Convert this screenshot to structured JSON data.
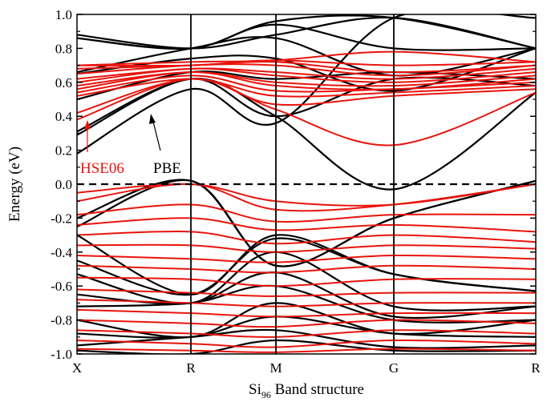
{
  "chart_data": {
    "type": "line",
    "title": "",
    "xlabel": "Si",
    "xlabel_subscript": "96",
    "xlabel_suffix": " Band structure",
    "ylabel": "Energy (eV)",
    "ylim": [
      -1.0,
      1.0
    ],
    "yticks": [
      "-1.0",
      "-0.8",
      "-0.6",
      "-0.4",
      "-0.2",
      "0.0",
      "0.2",
      "0.4",
      "0.6",
      "0.8",
      "1.0"
    ],
    "kpath": [
      "X",
      "R",
      "M",
      "G",
      "R"
    ],
    "fermi_level": 0.0,
    "colors": {
      "PBE": "#000000",
      "HSE06": "#e8140c"
    },
    "annotations": [
      {
        "text": "HSE06",
        "color": "#e8140c",
        "points_to": "HSE06"
      },
      {
        "text": "PBE",
        "color": "#000000",
        "points_to": "PBE"
      }
    ],
    "series": [
      {
        "name": "PBE",
        "bands": [
          [
            0.18,
            0.56,
            0.36,
            0.98,
            0.98
          ],
          [
            0.29,
            0.62,
            0.4,
            -0.03,
            0.54
          ],
          [
            0.31,
            0.62,
            0.4,
            0.62,
            0.58
          ],
          [
            0.5,
            0.66,
            0.62,
            0.66,
            0.62
          ],
          [
            0.65,
            0.74,
            0.74,
            0.55,
            0.8
          ],
          [
            0.66,
            0.8,
            0.86,
            0.64,
            0.8
          ],
          [
            0.86,
            0.8,
            0.96,
            0.98,
            0.8
          ],
          [
            0.88,
            0.8,
            0.88,
            0.98,
            0.8
          ],
          [
            0.86,
            0.8,
            0.94,
            0.8,
            0.8
          ],
          [
            -0.2,
            0.02,
            -0.48,
            -0.2,
            0.02
          ],
          [
            -0.25,
            0.02,
            -0.48,
            -0.2,
            0.02
          ],
          [
            -0.3,
            -0.65,
            -0.3,
            -0.53,
            -0.63
          ],
          [
            -0.45,
            -0.65,
            -0.32,
            -0.53,
            -0.63
          ],
          [
            -0.53,
            -0.7,
            -0.4,
            -0.72,
            -0.72
          ],
          [
            -0.65,
            -0.7,
            -0.52,
            -0.78,
            -0.72
          ],
          [
            -0.72,
            -0.7,
            -0.6,
            -0.8,
            -0.8
          ],
          [
            -0.8,
            -0.9,
            -0.7,
            -0.88,
            -0.8
          ],
          [
            -0.88,
            -0.9,
            -0.78,
            -0.88,
            -0.9
          ],
          [
            -0.95,
            -0.9,
            -0.86,
            -0.96,
            -0.95
          ],
          [
            -0.98,
            -1.0,
            -0.92,
            -0.98,
            -0.98
          ]
        ]
      },
      {
        "name": "HSE06",
        "bands": [
          [
            0.38,
            0.62,
            0.44,
            0.23,
            0.54
          ],
          [
            0.42,
            0.62,
            0.47,
            0.52,
            0.56
          ],
          [
            0.52,
            0.62,
            0.52,
            0.54,
            0.58
          ],
          [
            0.54,
            0.64,
            0.55,
            0.56,
            0.6
          ],
          [
            0.56,
            0.66,
            0.58,
            0.56,
            0.62
          ],
          [
            0.58,
            0.66,
            0.6,
            0.58,
            0.64
          ],
          [
            0.6,
            0.68,
            0.64,
            0.6,
            0.66
          ],
          [
            0.62,
            0.68,
            0.66,
            0.62,
            0.68
          ],
          [
            0.65,
            0.7,
            0.7,
            0.64,
            0.7
          ],
          [
            0.68,
            0.7,
            0.72,
            0.66,
            0.7
          ],
          [
            0.7,
            0.7,
            0.73,
            0.7,
            0.72
          ],
          [
            0.7,
            0.72,
            0.73,
            0.78,
            0.72
          ],
          [
            -0.05,
            0.0,
            -0.1,
            -0.12,
            0.0
          ],
          [
            -0.1,
            0.0,
            -0.15,
            -0.12,
            0.0
          ],
          [
            -0.18,
            -0.12,
            -0.22,
            -0.18,
            -0.18
          ],
          [
            -0.24,
            -0.2,
            -0.27,
            -0.24,
            -0.28
          ],
          [
            -0.3,
            -0.28,
            -0.35,
            -0.3,
            -0.34
          ],
          [
            -0.36,
            -0.36,
            -0.4,
            -0.36,
            -0.38
          ],
          [
            -0.42,
            -0.44,
            -0.46,
            -0.42,
            -0.44
          ],
          [
            -0.48,
            -0.5,
            -0.52,
            -0.48,
            -0.5
          ],
          [
            -0.55,
            -0.56,
            -0.6,
            -0.56,
            -0.56
          ],
          [
            -0.62,
            -0.64,
            -0.66,
            -0.64,
            -0.64
          ],
          [
            -0.68,
            -0.7,
            -0.72,
            -0.7,
            -0.7
          ],
          [
            -0.74,
            -0.76,
            -0.78,
            -0.76,
            -0.76
          ],
          [
            -0.8,
            -0.82,
            -0.84,
            -0.8,
            -0.82
          ],
          [
            -0.86,
            -0.88,
            -0.9,
            -0.86,
            -0.88
          ],
          [
            -0.92,
            -0.94,
            -0.96,
            -0.92,
            -0.94
          ],
          [
            -0.97,
            -0.98,
            -0.99,
            -0.97,
            -0.98
          ]
        ]
      }
    ]
  }
}
